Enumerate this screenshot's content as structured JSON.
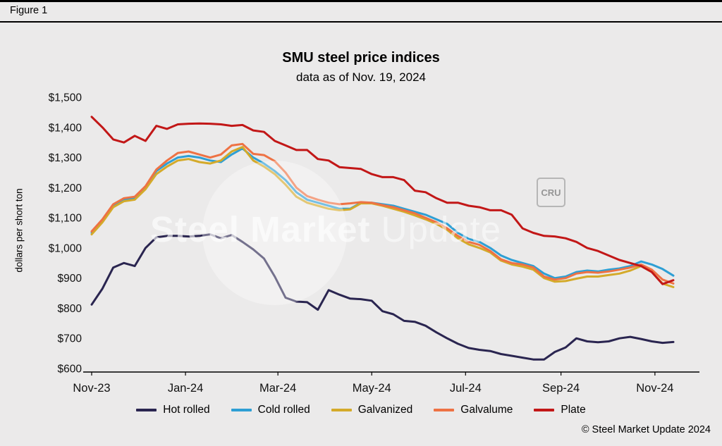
{
  "figure": {
    "label": "Figure 1"
  },
  "header": {
    "title": "SMU steel price indices",
    "subtitle": "data as of Nov. 19, 2024"
  },
  "watermark": {
    "text_bold": "Steel Market",
    "text_light": "Update",
    "badge": "CRU"
  },
  "footer": {
    "copyright": "© Steel Market Update 2024"
  },
  "chart_data": {
    "type": "line",
    "title": "SMU steel price indices",
    "subtitle": "data as of Nov. 19, 2024",
    "xlabel": "",
    "ylabel": "dollars per short ton",
    "ylim": [
      600,
      1500
    ],
    "grid": false,
    "legend_position": "bottom",
    "x_unit": "weekly observations, week 0 = Nov-23 through week 54 = Nov 19, 2024",
    "weeks": 54,
    "y_ticks": [
      {
        "label": "$600",
        "value": 600
      },
      {
        "label": "$700",
        "value": 700
      },
      {
        "label": "$800",
        "value": 800
      },
      {
        "label": "$900",
        "value": 900
      },
      {
        "label": "$1,000",
        "value": 1000
      },
      {
        "label": "$1,100",
        "value": 1100
      },
      {
        "label": "$1,200",
        "value": 1200
      },
      {
        "label": "$1,300",
        "value": 1300
      },
      {
        "label": "$1,400",
        "value": 1400
      },
      {
        "label": "$1,500",
        "value": 1500
      }
    ],
    "x_ticks": [
      {
        "label": "Nov-23",
        "pos": 0
      },
      {
        "label": "Jan-24",
        "pos": 8.71
      },
      {
        "label": "Mar-24",
        "pos": 17.29
      },
      {
        "label": "May-24",
        "pos": 26.0
      },
      {
        "label": "Jul-24",
        "pos": 34.71
      },
      {
        "label": "Sep-24",
        "pos": 43.57
      },
      {
        "label": "Nov-24",
        "pos": 52.29
      }
    ],
    "series": [
      {
        "name": "Hot rolled",
        "color": "#2a2550",
        "values": [
          812,
          865,
          935,
          950,
          940,
          1000,
          1035,
          1040,
          1040,
          1038,
          1040,
          1045,
          1032,
          1043,
          1020,
          995,
          965,
          905,
          835,
          822,
          820,
          795,
          860,
          845,
          832,
          830,
          825,
          790,
          780,
          758,
          755,
          742,
          720,
          700,
          682,
          668,
          662,
          658,
          648,
          642,
          636,
          630,
          630,
          655,
          670,
          700,
          690,
          687,
          690,
          700,
          705,
          698,
          690,
          685,
          688
        ]
      },
      {
        "name": "Cold rolled",
        "color": "#2e9fd4",
        "values": [
          1050,
          1090,
          1140,
          1160,
          1165,
          1200,
          1255,
          1280,
          1300,
          1305,
          1300,
          1290,
          1285,
          1310,
          1330,
          1300,
          1280,
          1255,
          1225,
          1185,
          1160,
          1150,
          1140,
          1130,
          1130,
          1150,
          1150,
          1145,
          1140,
          1130,
          1120,
          1110,
          1095,
          1080,
          1050,
          1030,
          1020,
          1000,
          975,
          960,
          950,
          940,
          915,
          900,
          905,
          920,
          925,
          922,
          928,
          932,
          940,
          955,
          945,
          930,
          908
        ]
      },
      {
        "name": "Galvanized",
        "color": "#d4aa2a",
        "values": [
          1045,
          1085,
          1135,
          1155,
          1160,
          1195,
          1245,
          1270,
          1290,
          1295,
          1285,
          1280,
          1290,
          1320,
          1335,
          1290,
          1270,
          1245,
          1210,
          1170,
          1150,
          1140,
          1130,
          1125,
          1128,
          1148,
          1148,
          1140,
          1130,
          1120,
          1108,
          1095,
          1080,
          1060,
          1032,
          1012,
          1000,
          985,
          958,
          945,
          938,
          928,
          900,
          888,
          890,
          898,
          905,
          905,
          910,
          915,
          925,
          940,
          920,
          882,
          870
        ]
      },
      {
        "name": "Galvalume",
        "color": "#ee7244",
        "values": [
          1055,
          1095,
          1145,
          1165,
          1170,
          1205,
          1260,
          1290,
          1315,
          1320,
          1310,
          1300,
          1310,
          1340,
          1345,
          1312,
          1308,
          1288,
          1250,
          1200,
          1172,
          1160,
          1150,
          1145,
          1148,
          1152,
          1150,
          1142,
          1135,
          1125,
          1115,
          1100,
          1085,
          1065,
          1040,
          1020,
          1010,
          990,
          962,
          950,
          945,
          935,
          905,
          895,
          900,
          915,
          920,
          918,
          922,
          928,
          935,
          945,
          928,
          895,
          882
        ]
      },
      {
        "name": "Plate",
        "color": "#c21717",
        "values": [
          1435,
          1400,
          1360,
          1350,
          1372,
          1355,
          1405,
          1395,
          1410,
          1412,
          1413,
          1412,
          1410,
          1405,
          1408,
          1390,
          1385,
          1355,
          1340,
          1325,
          1325,
          1295,
          1290,
          1268,
          1265,
          1262,
          1245,
          1235,
          1235,
          1225,
          1190,
          1185,
          1165,
          1150,
          1150,
          1140,
          1135,
          1125,
          1125,
          1110,
          1065,
          1050,
          1040,
          1038,
          1032,
          1020,
          1000,
          990,
          975,
          960,
          950,
          940,
          920,
          880,
          893
        ]
      }
    ]
  }
}
